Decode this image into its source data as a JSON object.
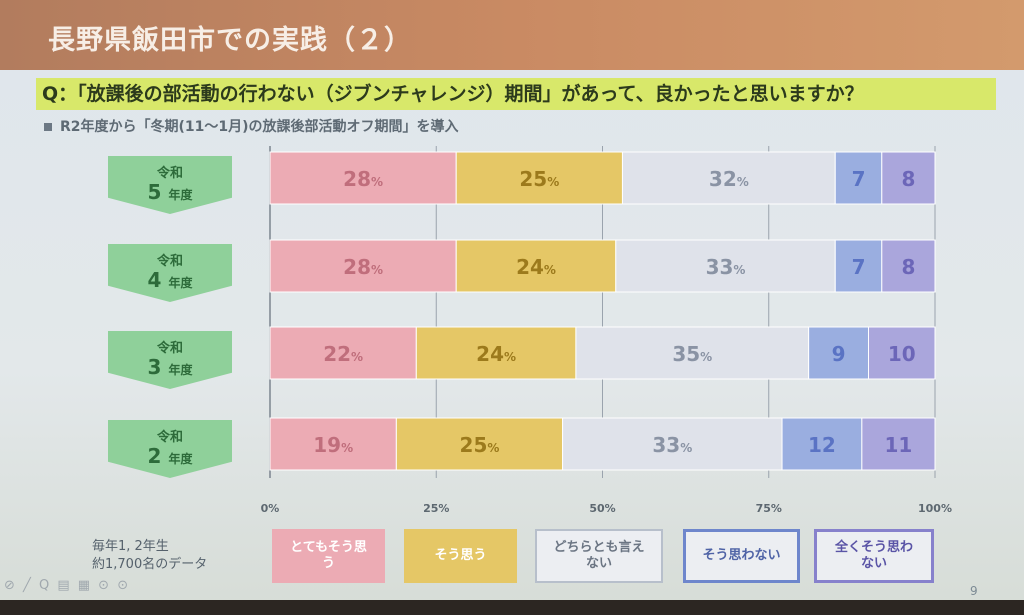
{
  "slide": {
    "title": "長野県飯田市での実践（２）",
    "question": "Q：「放課後の部活動の行わない（ジブンチャレンジ）期間」があって、良かったと思いますか？",
    "note": "R2年度から「冬期(11～1月)の放課後部活動オフ期間」を導入",
    "footnote_line1": "毎年1, 2年生",
    "footnote_line2": "約1,700名のデータ",
    "page_number": "9",
    "toolbar_glyphs": "⊘ ╱ Q ▤ ▦ ⊙ ⊙"
  },
  "colors": {
    "strongly_agree": "#ecabb4",
    "agree": "#e5c766",
    "neutral": "#dfe2ea",
    "disagree": "#9aaee0",
    "strongly_disagree": "#aaa6dc"
  },
  "chart_data": {
    "type": "bar",
    "orientation": "horizontal",
    "stacked": true,
    "percent_suffix": "%",
    "categories": [
      {
        "line1": "令和",
        "line2": "5",
        "unit": "年度"
      },
      {
        "line1": "令和",
        "line2": "4",
        "unit": "年度"
      },
      {
        "line1": "令和",
        "line2": "3",
        "unit": "年度"
      },
      {
        "line1": "令和",
        "line2": "2",
        "unit": "年度"
      }
    ],
    "series": [
      {
        "name": "とてもそう思う",
        "values": [
          28,
          28,
          22,
          19
        ],
        "show_pct": true
      },
      {
        "name": "そう思う",
        "values": [
          25,
          24,
          24,
          25
        ],
        "show_pct": true
      },
      {
        "name": "どちらとも言えない",
        "values": [
          32,
          33,
          35,
          33
        ],
        "show_pct": true
      },
      {
        "name": "そう思わない",
        "values": [
          7,
          7,
          9,
          12
        ],
        "show_pct": false
      },
      {
        "name": "全くそう思わない",
        "values": [
          8,
          8,
          10,
          11
        ],
        "show_pct": false
      }
    ],
    "xticks": [
      "0%",
      "25%",
      "50%",
      "75%",
      "100%"
    ],
    "xlim": [
      0,
      100
    ],
    "grid": true,
    "legend_position": "bottom"
  },
  "legend": {
    "items": [
      {
        "label_line1": "とてもそう思",
        "label_line2": "う"
      },
      {
        "label_line1": "そう思う",
        "label_line2": ""
      },
      {
        "label_line1": "どちらとも言え",
        "label_line2": "ない"
      },
      {
        "label_line1": "そう思わない",
        "label_line2": ""
      },
      {
        "label_line1": "全くそう思わ",
        "label_line2": "ない"
      }
    ]
  }
}
